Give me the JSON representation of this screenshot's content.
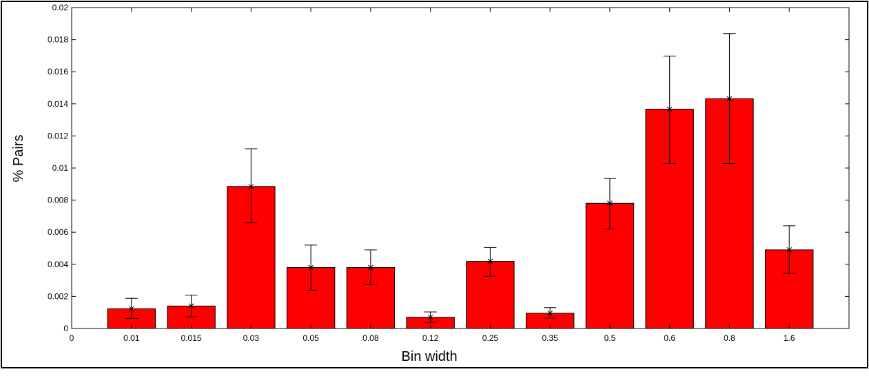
{
  "chart_data": {
    "type": "bar",
    "title": "",
    "xlabel": "Bin width",
    "ylabel": "% Pairs",
    "categories": [
      "0.01",
      "0.015",
      "0.03",
      "0.05",
      "0.08",
      "0.12",
      "0.25",
      "0.35",
      "0.5",
      "0.6",
      "0.8",
      "1.6"
    ],
    "x_start_label": "0",
    "values": [
      0.00123,
      0.0014,
      0.00885,
      0.0038,
      0.0038,
      0.0007,
      0.00418,
      0.00095,
      0.0078,
      0.01367,
      0.01432,
      0.0049
    ],
    "error_low": [
      0.00063,
      0.00073,
      0.00658,
      0.00238,
      0.00273,
      0.00038,
      0.00325,
      0.00065,
      0.0062,
      0.01028,
      0.01028,
      0.00343
    ],
    "error_high": [
      0.00188,
      0.00208,
      0.0112,
      0.0052,
      0.0049,
      0.00103,
      0.00505,
      0.0013,
      0.00935,
      0.01698,
      0.01838,
      0.0064
    ],
    "ylim": [
      0,
      0.02
    ],
    "yticks": [
      "0",
      "0.002",
      "0.004",
      "0.006",
      "0.008",
      "0.01",
      "0.012",
      "0.014",
      "0.016",
      "0.018",
      "0.02"
    ],
    "grid": false,
    "legend": "none",
    "colors": {
      "bar_fill": "#ff0000",
      "bar_stroke": "#000000",
      "error_bar": "#000000",
      "axis": "#000000",
      "frame": "#000000"
    }
  }
}
